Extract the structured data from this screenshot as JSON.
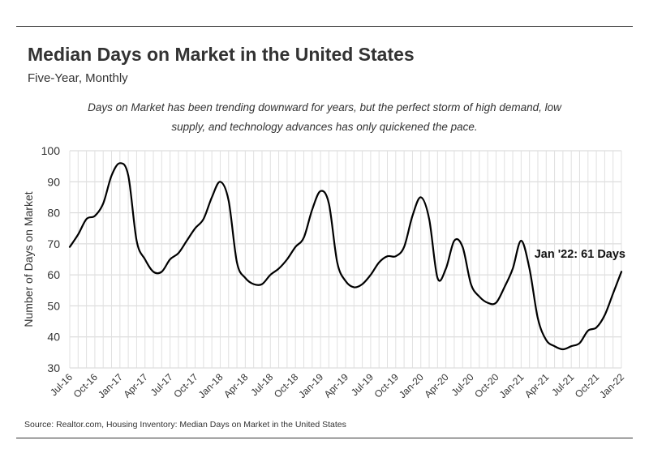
{
  "header": {
    "title": "Median Days on Market in the United States",
    "subtitle": "Five-Year, Monthly",
    "annotation": "Days on Market has been trending downward for years, but the perfect storm of high demand, low supply, and technology advances has only quickened the pace."
  },
  "footer": {
    "source": "Source:  Realtor.com, Housing Inventory: Median Days on Market in the United States"
  },
  "chart_data": {
    "type": "line",
    "title": "Median Days on Market in the United States",
    "subtitle": "Five-Year, Monthly",
    "xlabel": "",
    "ylabel": "Number of Days on Market",
    "ylim": [
      30,
      100
    ],
    "yticks": [
      30,
      40,
      50,
      60,
      70,
      80,
      90,
      100
    ],
    "grid": true,
    "line_color": "#000000",
    "tick_labels": [
      "Jul-16",
      "Oct-16",
      "Jan-17",
      "Apr-17",
      "Jul-17",
      "Oct-17",
      "Jan-18",
      "Apr-18",
      "Jul-18",
      "Oct-18",
      "Jan-19",
      "Apr-19",
      "Jul-19",
      "Oct-19",
      "Jan-20",
      "Apr-20",
      "Jul-20",
      "Oct-20",
      "Jan-21",
      "Apr-21",
      "Jul-21",
      "Oct-21",
      "Jan-22"
    ],
    "x": [
      "Jul-16",
      "Aug-16",
      "Sep-16",
      "Oct-16",
      "Nov-16",
      "Dec-16",
      "Jan-17",
      "Feb-17",
      "Mar-17",
      "Apr-17",
      "May-17",
      "Jun-17",
      "Jul-17",
      "Aug-17",
      "Sep-17",
      "Oct-17",
      "Nov-17",
      "Dec-17",
      "Jan-18",
      "Feb-18",
      "Mar-18",
      "Apr-18",
      "May-18",
      "Jun-18",
      "Jul-18",
      "Aug-18",
      "Sep-18",
      "Oct-18",
      "Nov-18",
      "Dec-18",
      "Jan-19",
      "Feb-19",
      "Mar-19",
      "Apr-19",
      "May-19",
      "Jun-19",
      "Jul-19",
      "Aug-19",
      "Sep-19",
      "Oct-19",
      "Nov-19",
      "Dec-19",
      "Jan-20",
      "Feb-20",
      "Mar-20",
      "Apr-20",
      "May-20",
      "Jun-20",
      "Jul-20",
      "Aug-20",
      "Sep-20",
      "Oct-20",
      "Nov-20",
      "Dec-20",
      "Jan-21",
      "Feb-21",
      "Mar-21",
      "Apr-21",
      "May-21",
      "Jun-21",
      "Jul-21",
      "Aug-21",
      "Sep-21",
      "Oct-21",
      "Nov-21",
      "Dec-21",
      "Jan-22"
    ],
    "series": [
      {
        "values": [
          69,
          73,
          78,
          79,
          83,
          92,
          96,
          92,
          71,
          65,
          61,
          61,
          65,
          67,
          71,
          75,
          78,
          85,
          90,
          84,
          64,
          59,
          57,
          57,
          60,
          62,
          65,
          69,
          72,
          81,
          87,
          83,
          64,
          58,
          56,
          57,
          60,
          64,
          66,
          66,
          69,
          79,
          85,
          78,
          59,
          62,
          71,
          69,
          57,
          53,
          51,
          51,
          56,
          62,
          71,
          62,
          46,
          39,
          37,
          36,
          37,
          38,
          42,
          43,
          47,
          54,
          61
        ]
      }
    ],
    "callout": "Jan '22: 61 Days"
  }
}
